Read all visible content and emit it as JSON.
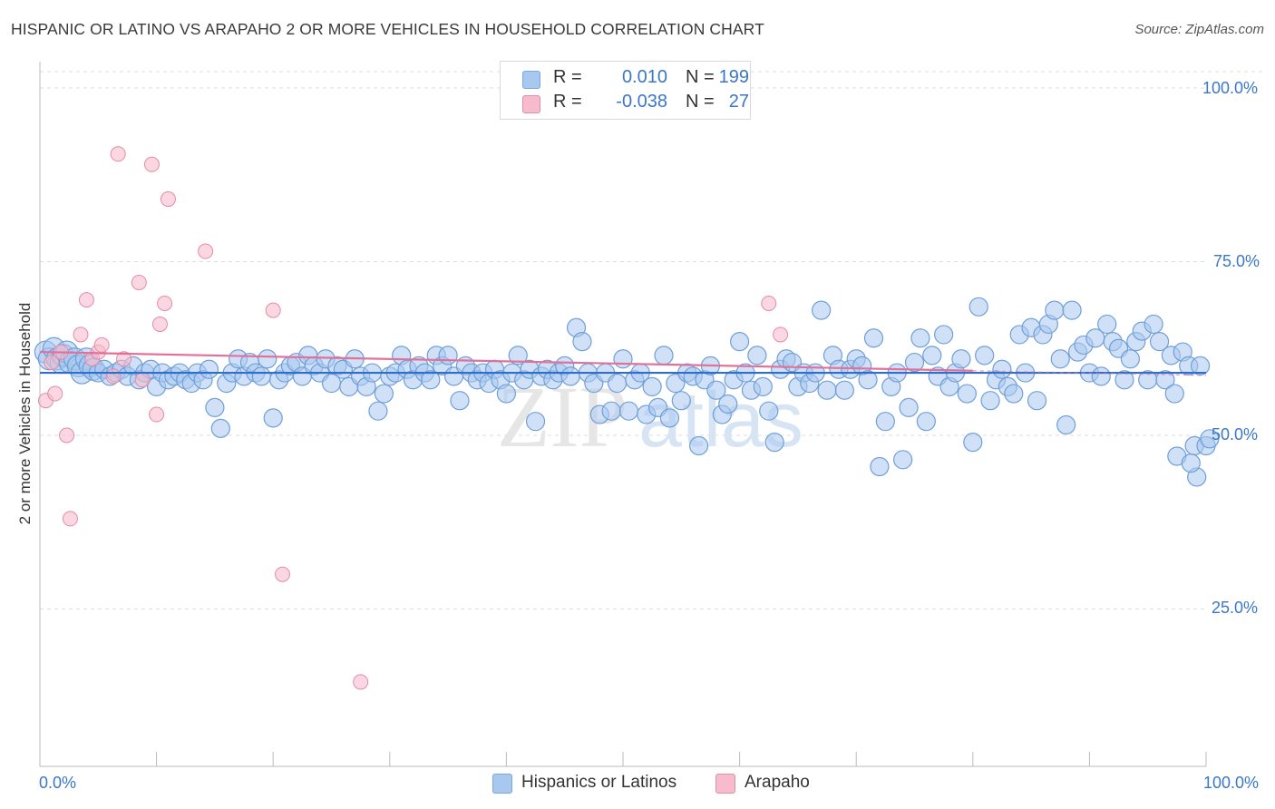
{
  "title": "HISPANIC OR LATINO VS ARAPAHO 2 OR MORE VEHICLES IN HOUSEHOLD CORRELATION CHART",
  "source": "Source: ZipAtlas.com",
  "legend": {
    "rows": [
      {
        "r_label": "R =",
        "r_value": "0.010",
        "n_label": "N =",
        "n_value": "199",
        "color": "#a9c8f0",
        "border": "#7aa6dc"
      },
      {
        "r_label": "R =",
        "r_value": "-0.038",
        "n_label": "N =",
        "n_value": "27",
        "color": "#f6bccd",
        "border": "#e58aa8"
      }
    ]
  },
  "bottom_legend": [
    {
      "label": "Hispanics or Latinos",
      "color": "#a9c8f0",
      "border": "#7aa6dc"
    },
    {
      "label": "Arapaho",
      "color": "#f6bccd",
      "border": "#e58aa8"
    }
  ],
  "watermark": {
    "zip": "ZIP",
    "atlas": "atlas"
  },
  "chart_data": {
    "type": "scatter",
    "title": "HISPANIC OR LATINO VS ARAPAHO 2 OR MORE VEHICLES IN HOUSEHOLD CORRELATION CHART",
    "xlabel": "",
    "ylabel": "2 or more Vehicles in Household",
    "xlim": [
      0,
      100
    ],
    "ylim": [
      0,
      100
    ],
    "x_tick_labels": [
      "0.0%",
      "100.0%"
    ],
    "y_tick_labels": [
      "100.0%",
      "75.0%",
      "50.0%",
      "25.0%"
    ],
    "y_ticks": [
      100,
      75,
      50,
      25
    ],
    "grid": true,
    "series": [
      {
        "name": "Hispanics or Latinos",
        "color": "#a9c8f0",
        "stroke": "#6f9fd8",
        "trend": {
          "x": [
            0,
            100
          ],
          "y": [
            59.0,
            59.0
          ],
          "color": "#2f6fc9"
        },
        "points": [
          [
            0.5,
            62
          ],
          [
            0.8,
            61
          ],
          [
            1.2,
            62.5
          ],
          [
            1.5,
            61
          ],
          [
            1.8,
            60.5
          ],
          [
            2,
            61.5
          ],
          [
            2.3,
            62
          ],
          [
            2.6,
            60.5
          ],
          [
            3,
            61
          ],
          [
            3.3,
            60
          ],
          [
            3.6,
            59
          ],
          [
            4,
            61
          ],
          [
            4.3,
            60
          ],
          [
            4.6,
            59.5
          ],
          [
            5,
            59
          ],
          [
            5.5,
            59.5
          ],
          [
            6,
            58.5
          ],
          [
            6.5,
            59
          ],
          [
            7,
            59.5
          ],
          [
            7.5,
            58.5
          ],
          [
            8,
            60
          ],
          [
            8.5,
            58
          ],
          [
            9,
            59
          ],
          [
            9.5,
            59.5
          ],
          [
            10,
            57
          ],
          [
            10.5,
            59
          ],
          [
            11,
            58
          ],
          [
            11.5,
            58.5
          ],
          [
            12,
            59
          ],
          [
            12.5,
            58
          ],
          [
            13,
            57.5
          ],
          [
            13.5,
            59
          ],
          [
            14,
            58
          ],
          [
            14.5,
            59.5
          ],
          [
            15,
            54
          ],
          [
            15.5,
            51
          ],
          [
            16,
            57.5
          ],
          [
            16.5,
            59
          ],
          [
            17,
            61
          ],
          [
            17.5,
            58.5
          ],
          [
            18,
            60.5
          ],
          [
            18.5,
            59
          ],
          [
            19,
            58.5
          ],
          [
            19.5,
            61
          ],
          [
            20,
            52.5
          ],
          [
            20.5,
            58
          ],
          [
            21,
            59
          ],
          [
            21.5,
            60
          ],
          [
            22,
            60.5
          ],
          [
            22.5,
            58.5
          ],
          [
            23,
            61.5
          ],
          [
            23.5,
            60
          ],
          [
            24,
            59
          ],
          [
            24.5,
            61
          ],
          [
            25,
            57.5
          ],
          [
            25.5,
            60
          ],
          [
            26,
            59.5
          ],
          [
            26.5,
            57
          ],
          [
            27,
            61
          ],
          [
            27.5,
            58.5
          ],
          [
            28,
            57
          ],
          [
            28.5,
            59
          ],
          [
            29,
            53.5
          ],
          [
            29.5,
            56
          ],
          [
            30,
            58.5
          ],
          [
            30.5,
            59
          ],
          [
            31,
            61.5
          ],
          [
            31.5,
            59.5
          ],
          [
            32,
            58
          ],
          [
            32.5,
            60
          ],
          [
            33,
            59
          ],
          [
            33.5,
            58
          ],
          [
            34,
            61.5
          ],
          [
            34.5,
            60
          ],
          [
            35,
            61.5
          ],
          [
            35.5,
            58.5
          ],
          [
            36,
            55
          ],
          [
            36.5,
            60
          ],
          [
            37,
            59
          ],
          [
            37.5,
            58
          ],
          [
            38,
            59
          ],
          [
            38.5,
            57.5
          ],
          [
            39,
            59.5
          ],
          [
            39.5,
            58
          ],
          [
            40,
            56
          ],
          [
            40.5,
            59
          ],
          [
            41,
            61.5
          ],
          [
            41.5,
            58
          ],
          [
            42,
            59.5
          ],
          [
            42.5,
            52
          ],
          [
            43,
            58.5
          ],
          [
            43.5,
            59.5
          ],
          [
            44,
            58
          ],
          [
            44.5,
            59
          ],
          [
            45,
            60
          ],
          [
            45.5,
            58.5
          ],
          [
            46,
            65.5
          ],
          [
            46.5,
            63.5
          ],
          [
            47,
            59
          ],
          [
            47.5,
            57.5
          ],
          [
            48,
            53
          ],
          [
            48.5,
            59
          ],
          [
            49,
            53.5
          ],
          [
            49.5,
            57.5
          ],
          [
            50,
            61
          ],
          [
            50.5,
            53.5
          ],
          [
            51,
            58
          ],
          [
            51.5,
            59
          ],
          [
            52,
            53
          ],
          [
            52.5,
            57
          ],
          [
            53,
            54
          ],
          [
            53.5,
            61.5
          ],
          [
            54,
            52.5
          ],
          [
            54.5,
            57.5
          ],
          [
            55,
            55
          ],
          [
            55.5,
            59
          ],
          [
            56,
            58.5
          ],
          [
            56.5,
            48.5
          ],
          [
            57,
            58
          ],
          [
            57.5,
            60
          ],
          [
            58,
            56.5
          ],
          [
            58.5,
            53
          ],
          [
            59,
            54.5
          ],
          [
            59.5,
            58
          ],
          [
            60,
            63.5
          ],
          [
            60.5,
            59
          ],
          [
            61,
            56.5
          ],
          [
            61.5,
            61.5
          ],
          [
            62,
            57
          ],
          [
            62.5,
            53.5
          ],
          [
            63,
            49
          ],
          [
            63.5,
            59.5
          ],
          [
            64,
            61
          ],
          [
            64.5,
            60.5
          ],
          [
            65,
            57
          ],
          [
            65.5,
            59
          ],
          [
            66,
            57.5
          ],
          [
            66.5,
            59
          ],
          [
            67,
            68
          ],
          [
            67.5,
            56.5
          ],
          [
            68,
            61.5
          ],
          [
            68.5,
            59.5
          ],
          [
            69,
            56.5
          ],
          [
            69.5,
            59.5
          ],
          [
            70,
            61
          ],
          [
            70.5,
            60
          ],
          [
            71,
            58
          ],
          [
            71.5,
            64
          ],
          [
            72,
            45.5
          ],
          [
            72.5,
            52
          ],
          [
            73,
            57
          ],
          [
            73.5,
            59
          ],
          [
            74,
            46.5
          ],
          [
            74.5,
            54
          ],
          [
            75,
            60.5
          ],
          [
            75.5,
            64
          ],
          [
            76,
            52
          ],
          [
            76.5,
            61.5
          ],
          [
            77,
            58.5
          ],
          [
            77.5,
            64.5
          ],
          [
            78,
            57
          ],
          [
            78.5,
            59
          ],
          [
            79,
            61
          ],
          [
            79.5,
            56
          ],
          [
            80,
            49
          ],
          [
            80.5,
            68.5
          ],
          [
            81,
            61.5
          ],
          [
            81.5,
            55
          ],
          [
            82,
            58
          ],
          [
            82.5,
            59.5
          ],
          [
            83,
            57
          ],
          [
            83.5,
            56
          ],
          [
            84,
            64.5
          ],
          [
            84.5,
            59
          ],
          [
            85,
            65.5
          ],
          [
            85.5,
            55
          ],
          [
            86,
            64.5
          ],
          [
            86.5,
            66
          ],
          [
            87,
            68
          ],
          [
            87.5,
            61
          ],
          [
            88,
            51.5
          ],
          [
            88.5,
            68
          ],
          [
            89,
            62
          ],
          [
            89.5,
            63
          ],
          [
            90,
            59
          ],
          [
            90.5,
            64
          ],
          [
            91,
            58.5
          ],
          [
            91.5,
            66
          ],
          [
            92,
            63.5
          ],
          [
            92.5,
            62.5
          ],
          [
            93,
            58
          ],
          [
            93.5,
            61
          ],
          [
            94,
            63.5
          ],
          [
            94.5,
            65
          ],
          [
            95,
            58
          ],
          [
            95.5,
            66
          ],
          [
            96,
            63.5
          ],
          [
            96.5,
            58
          ],
          [
            97,
            61.5
          ],
          [
            97.5,
            47
          ],
          [
            98,
            62
          ],
          [
            98.5,
            60
          ],
          [
            99,
            48.5
          ],
          [
            99.5,
            60
          ],
          [
            100,
            48.5
          ],
          [
            100.3,
            49.5
          ],
          [
            99.2,
            44
          ],
          [
            98.7,
            46
          ],
          [
            97.3,
            56
          ]
        ]
      },
      {
        "name": "Arapaho",
        "color": "#f6bccd",
        "stroke": "#e58aa8",
        "trend": {
          "x": [
            0,
            80
          ],
          "y": [
            62.0,
            59.3
          ],
          "color": "#e2719a"
        },
        "points": [
          [
            0.5,
            55
          ],
          [
            1,
            60.5
          ],
          [
            1.3,
            56
          ],
          [
            1.8,
            62
          ],
          [
            2.3,
            50
          ],
          [
            2.6,
            38
          ],
          [
            3.5,
            64.5
          ],
          [
            4,
            69.5
          ],
          [
            4.5,
            61
          ],
          [
            5,
            62
          ],
          [
            5.3,
            63
          ],
          [
            6.3,
            58.5
          ],
          [
            6.7,
            90.5
          ],
          [
            7.2,
            61
          ],
          [
            8.5,
            72
          ],
          [
            8.8,
            58
          ],
          [
            9.6,
            89
          ],
          [
            10,
            53
          ],
          [
            10.3,
            66
          ],
          [
            10.7,
            69
          ],
          [
            11,
            84
          ],
          [
            14.2,
            76.5
          ],
          [
            20,
            68
          ],
          [
            20.8,
            30
          ],
          [
            27.5,
            14.5
          ],
          [
            62.5,
            69
          ],
          [
            63.5,
            64.5
          ]
        ]
      }
    ]
  }
}
